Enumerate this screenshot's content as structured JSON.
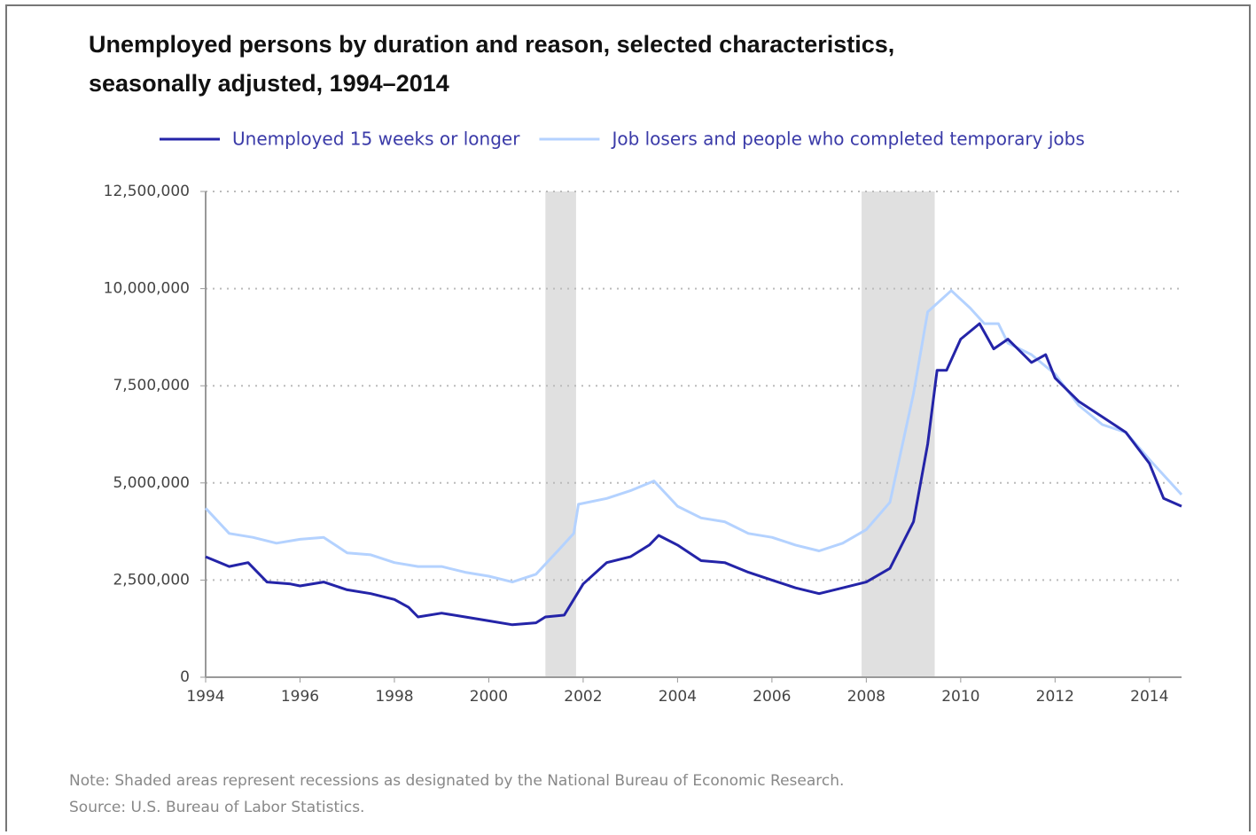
{
  "chart_data": {
    "type": "line",
    "title": [
      "Unemployed persons by duration and reason, selected characteristics,",
      "seasonally adjusted, 1994–2014"
    ],
    "notes": [
      "Note: Shaded areas represent recessions as designated by the National Bureau of Economic Research.",
      "Source: U.S. Bureau of Labor Statistics."
    ],
    "xlim": [
      1994,
      2014.68
    ],
    "xticks": [
      1994,
      1996,
      1998,
      2000,
      2002,
      2004,
      2006,
      2008,
      2010,
      2012,
      2014
    ],
    "ylim": [
      0,
      12500000
    ],
    "yticks": [
      0,
      {
        "value": 2500000,
        "label": "2,500,000"
      },
      {
        "value": 5000000,
        "label": "5,000,000"
      },
      {
        "value": 7500000,
        "label": "7,500,000"
      },
      {
        "value": 10000000,
        "label": "10,000,000"
      },
      {
        "value": 12500000,
        "label": "12,500,000"
      }
    ],
    "grid": true,
    "recessions": [
      [
        2001.2,
        2001.85
      ],
      [
        2007.9,
        2009.45
      ]
    ],
    "recession_color": "#e0e0e0",
    "series": [
      {
        "name": "Unemployed 15 weeks or longer",
        "color": "#2424a8",
        "x": [
          1994,
          1994.5,
          1994.9,
          1995.3,
          1995.8,
          1996,
          1996.5,
          1997,
          1997.5,
          1998,
          1998.3,
          1998.5,
          1999,
          1999.5,
          2000,
          2000.5,
          2001,
          2001.2,
          2001.6,
          2002,
          2002.5,
          2003,
          2003.4,
          2003.6,
          2004,
          2004.5,
          2005,
          2005.5,
          2006,
          2006.5,
          2007,
          2007.5,
          2008,
          2008.5,
          2009,
          2009.3,
          2009.5,
          2009.7,
          2010,
          2010.4,
          2010.7,
          2011,
          2011.5,
          2011.8,
          2012,
          2012.5,
          2013,
          2013.5,
          2014,
          2014.3,
          2014.68
        ],
        "values": [
          3100000,
          2850000,
          2950000,
          2450000,
          2400000,
          2350000,
          2450000,
          2250000,
          2150000,
          2000000,
          1800000,
          1550000,
          1650000,
          1550000,
          1450000,
          1350000,
          1400000,
          1550000,
          1600000,
          2400000,
          2950000,
          3100000,
          3400000,
          3650000,
          3400000,
          3000000,
          2950000,
          2700000,
          2500000,
          2300000,
          2150000,
          2300000,
          2450000,
          2800000,
          4000000,
          6000000,
          7900000,
          7900000,
          8700000,
          9100000,
          8450000,
          8700000,
          8100000,
          8300000,
          7700000,
          7100000,
          6700000,
          6300000,
          5500000,
          4600000,
          4400000
        ]
      },
      {
        "name": "Job losers and people who completed temporary jobs",
        "color": "#b4d2ff",
        "x": [
          1994,
          1994.5,
          1995,
          1995.5,
          1996,
          1996.5,
          1997,
          1997.5,
          1998,
          1998.5,
          1999,
          1999.5,
          2000,
          2000.5,
          2001,
          2001.5,
          2001.8,
          2001.9,
          2002.5,
          2003,
          2003.5,
          2004,
          2004.5,
          2005,
          2005.5,
          2006,
          2006.5,
          2007,
          2007.5,
          2008,
          2008.5,
          2009,
          2009.3,
          2009.8,
          2010.2,
          2010.5,
          2010.8,
          2011,
          2011.5,
          2012,
          2012.5,
          2013,
          2013.5,
          2014,
          2014.68
        ],
        "values": [
          4350000,
          3700000,
          3600000,
          3450000,
          3550000,
          3600000,
          3200000,
          3150000,
          2950000,
          2850000,
          2850000,
          2700000,
          2600000,
          2450000,
          2650000,
          3300000,
          3700000,
          4450000,
          4600000,
          4800000,
          5050000,
          4400000,
          4100000,
          4000000,
          3700000,
          3600000,
          3400000,
          3250000,
          3450000,
          3800000,
          4500000,
          7300000,
          9400000,
          9950000,
          9500000,
          9100000,
          9100000,
          8600000,
          8300000,
          7800000,
          7000000,
          6500000,
          6300000,
          5600000,
          4700000
        ]
      }
    ]
  }
}
